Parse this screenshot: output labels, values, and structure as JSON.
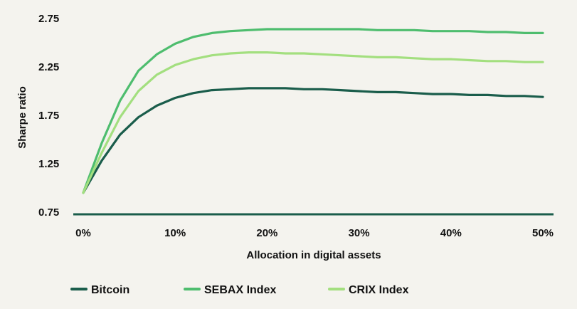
{
  "chart_data": {
    "type": "line",
    "xlabel": "Allocation in digital assets",
    "ylabel": "Sharpe ratio",
    "xlim": [
      0,
      50
    ],
    "ylim": [
      0.75,
      2.75
    ],
    "x_ticks": [
      0,
      10,
      20,
      30,
      40,
      50
    ],
    "x_tick_labels": [
      "0%",
      "10%",
      "20%",
      "30%",
      "40%",
      "50%"
    ],
    "y_ticks": [
      0.75,
      1.25,
      1.75,
      2.25,
      2.75
    ],
    "y_tick_labels": [
      "0.75",
      "1.25",
      "1.75",
      "2.25",
      "2.75"
    ],
    "grid": false,
    "legend_position": "bottom",
    "x": [
      0,
      2,
      4,
      6,
      8,
      10,
      12,
      14,
      16,
      18,
      20,
      22,
      24,
      26,
      28,
      30,
      32,
      34,
      36,
      38,
      40,
      42,
      44,
      46,
      48,
      50
    ],
    "series": [
      {
        "name": "Bitcoin",
        "color": "#1a5d4b",
        "values": [
          0.95,
          1.28,
          1.55,
          1.73,
          1.85,
          1.93,
          1.98,
          2.01,
          2.02,
          2.03,
          2.03,
          2.03,
          2.02,
          2.02,
          2.01,
          2.0,
          1.99,
          1.99,
          1.98,
          1.97,
          1.97,
          1.96,
          1.96,
          1.95,
          1.95,
          1.94
        ]
      },
      {
        "name": "SEBAX Index",
        "color": "#4ebd6e",
        "values": [
          0.95,
          1.46,
          1.9,
          2.21,
          2.38,
          2.49,
          2.56,
          2.6,
          2.62,
          2.63,
          2.64,
          2.64,
          2.64,
          2.64,
          2.64,
          2.64,
          2.63,
          2.63,
          2.63,
          2.62,
          2.62,
          2.62,
          2.61,
          2.61,
          2.6,
          2.6
        ]
      },
      {
        "name": "CRIX Index",
        "color": "#a3df7f",
        "values": [
          0.95,
          1.36,
          1.73,
          2.0,
          2.17,
          2.27,
          2.33,
          2.37,
          2.39,
          2.4,
          2.4,
          2.39,
          2.39,
          2.38,
          2.37,
          2.36,
          2.35,
          2.35,
          2.34,
          2.33,
          2.33,
          2.32,
          2.31,
          2.31,
          2.3,
          2.3
        ]
      }
    ]
  }
}
